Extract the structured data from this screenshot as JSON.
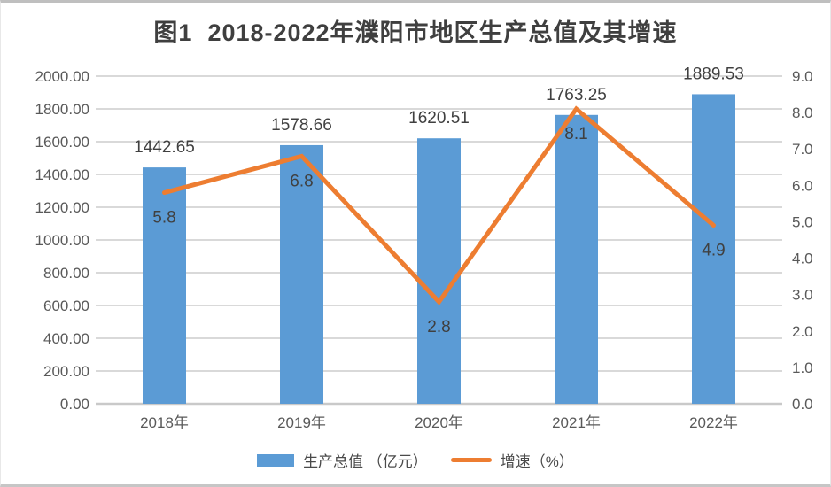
{
  "chart_data": {
    "type": "bar+line",
    "title": "图1  2018-2022年濮阳市地区生产总值及其增速",
    "categories": [
      "2018年",
      "2019年",
      "2020年",
      "2021年",
      "2022年"
    ],
    "series": [
      {
        "name": "生产总值 （亿元）",
        "type": "bar",
        "axis": "left",
        "color": "#5B9BD5",
        "values": [
          1442.65,
          1578.66,
          1620.51,
          1763.25,
          1889.53
        ],
        "labels": [
          "1442.65",
          "1578.66",
          "1620.51",
          "1763.25",
          "1889.53"
        ]
      },
      {
        "name": "增速（%）",
        "type": "line",
        "axis": "right",
        "color": "#ED7D31",
        "values": [
          5.8,
          6.8,
          2.8,
          8.1,
          4.9
        ],
        "labels": [
          "5.8",
          "6.8",
          "2.8",
          "8.1",
          "4.9"
        ]
      }
    ],
    "left_axis": {
      "min": 0,
      "max": 2000,
      "step": 200,
      "tick_labels": [
        "0.00",
        "200.00",
        "400.00",
        "600.00",
        "800.00",
        "1000.00",
        "1200.00",
        "1400.00",
        "1600.00",
        "1800.00",
        "2000.00"
      ]
    },
    "right_axis": {
      "min": 0,
      "max": 9,
      "step": 1,
      "tick_labels": [
        "0.0",
        "1.0",
        "2.0",
        "3.0",
        "4.0",
        "5.0",
        "6.0",
        "7.0",
        "8.0",
        "9.0"
      ]
    },
    "grid": true,
    "legend_position": "bottom",
    "colors": {
      "bar": "#5B9BD5",
      "line": "#ED7D31",
      "grid": "#D9D9D9",
      "axis_line": "#C9C9C9",
      "axis_text": "#595959",
      "data_label": "#404040",
      "title": "#3f3f3f"
    }
  }
}
